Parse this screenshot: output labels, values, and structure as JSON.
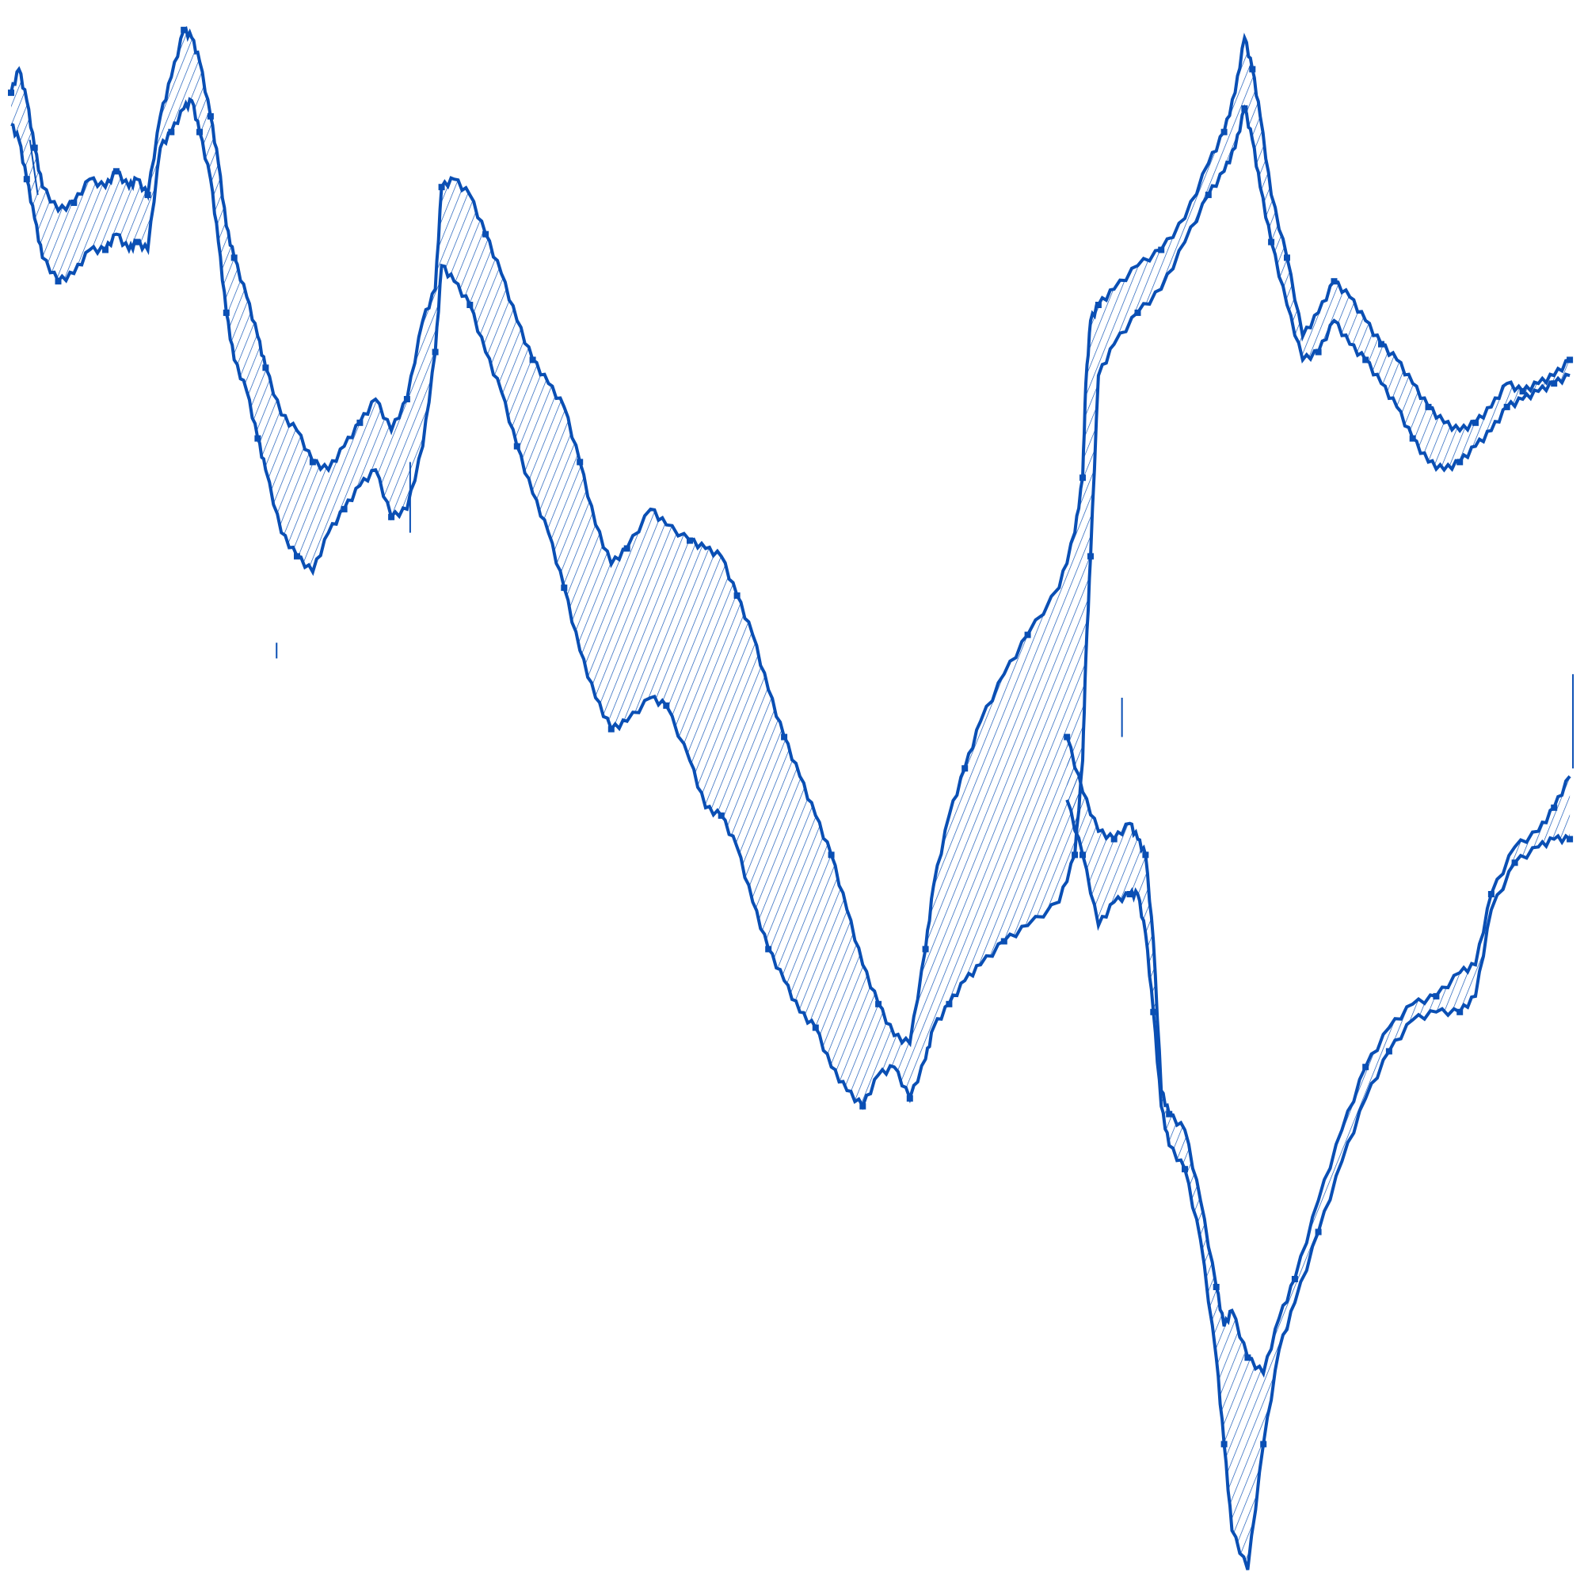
{
  "chart_data": {
    "type": "area",
    "title": "",
    "xlabel": "",
    "ylabel": "",
    "grid": false,
    "legend": "none",
    "xlim": [
      0,
      100
    ],
    "ylim": [
      0,
      100
    ],
    "fill_pattern": "diagonal-hatch",
    "colors": {
      "stroke": "#0a4fb4",
      "hatch": "#0a4fb4",
      "background": "#ffffff"
    },
    "series": [
      {
        "upper": [
          [
            0.3,
            94.5
          ],
          [
            0.8,
            96.0
          ],
          [
            1.3,
            94.0
          ],
          [
            1.8,
            91.0
          ],
          [
            2.3,
            88.5
          ],
          [
            3.3,
            87.0
          ],
          [
            4.3,
            87.5
          ],
          [
            5.3,
            89.0
          ],
          [
            6.3,
            88.5
          ],
          [
            7.0,
            89.5
          ],
          [
            7.8,
            88.5
          ],
          [
            8.3,
            89.0
          ],
          [
            9.0,
            88.0
          ],
          [
            9.8,
            93.0
          ],
          [
            10.5,
            95.5
          ],
          [
            11.3,
            98.5
          ],
          [
            11.8,
            98.0
          ],
          [
            12.3,
            96.5
          ],
          [
            13.0,
            93.0
          ],
          [
            13.5,
            90.0
          ],
          [
            14.0,
            86.0
          ],
          [
            14.5,
            84.0
          ],
          [
            15.3,
            81.5
          ],
          [
            16.0,
            79.0
          ],
          [
            16.5,
            77.0
          ],
          [
            17.5,
            74.0
          ],
          [
            18.5,
            73.0
          ],
          [
            19.5,
            71.0
          ],
          [
            20.5,
            70.5
          ],
          [
            21.5,
            72.0
          ],
          [
            22.5,
            73.5
          ],
          [
            23.5,
            75.0
          ],
          [
            24.5,
            73.0
          ],
          [
            25.5,
            75.0
          ],
          [
            26.5,
            80.0
          ],
          [
            27.3,
            82.0
          ],
          [
            27.7,
            88.5
          ],
          [
            28.5,
            89.0
          ],
          [
            29.5,
            88.0
          ],
          [
            30.5,
            85.5
          ],
          [
            31.5,
            83.0
          ],
          [
            32.5,
            80.0
          ],
          [
            33.5,
            77.5
          ],
          [
            34.5,
            76.0
          ],
          [
            35.5,
            74.5
          ],
          [
            36.5,
            71.0
          ],
          [
            37.5,
            67.0
          ],
          [
            38.5,
            64.5
          ],
          [
            39.5,
            65.5
          ],
          [
            41.0,
            68.0
          ],
          [
            42.0,
            67.0
          ],
          [
            43.5,
            66.0
          ],
          [
            44.5,
            65.5
          ],
          [
            45.5,
            65.0
          ],
          [
            46.5,
            62.5
          ],
          [
            47.5,
            60.0
          ],
          [
            48.5,
            56.5
          ],
          [
            49.5,
            53.5
          ],
          [
            50.5,
            51.0
          ],
          [
            51.5,
            48.5
          ],
          [
            52.5,
            46.0
          ],
          [
            53.5,
            42.5
          ],
          [
            54.5,
            39.0
          ],
          [
            55.5,
            36.5
          ],
          [
            56.5,
            34.5
          ],
          [
            57.5,
            34.0
          ],
          [
            58.5,
            40.0
          ],
          [
            59.0,
            44.0
          ],
          [
            60.0,
            48.5
          ],
          [
            61.0,
            51.5
          ],
          [
            62.0,
            54.5
          ],
          [
            63.5,
            57.5
          ],
          [
            65.0,
            60.0
          ],
          [
            67.0,
            63.0
          ],
          [
            68.0,
            66.5
          ],
          [
            68.5,
            70.0
          ],
          [
            68.7,
            76.0
          ],
          [
            69.0,
            80.0
          ],
          [
            69.5,
            81.0
          ],
          [
            70.5,
            82.0
          ],
          [
            72.0,
            83.5
          ],
          [
            73.5,
            84.5
          ],
          [
            75.0,
            86.5
          ],
          [
            76.5,
            90.0
          ],
          [
            77.5,
            92.0
          ],
          [
            78.2,
            94.5
          ],
          [
            78.8,
            98.0
          ],
          [
            79.3,
            96.0
          ],
          [
            79.8,
            93.0
          ],
          [
            80.5,
            88.0
          ],
          [
            81.5,
            84.0
          ],
          [
            82.5,
            79.0
          ],
          [
            83.5,
            80.5
          ],
          [
            84.5,
            82.5
          ],
          [
            85.5,
            81.5
          ],
          [
            86.5,
            80.0
          ],
          [
            87.5,
            78.5
          ],
          [
            88.5,
            77.5
          ],
          [
            89.5,
            76.0
          ],
          [
            90.5,
            74.5
          ],
          [
            91.5,
            73.5
          ],
          [
            92.5,
            73.0
          ],
          [
            93.5,
            73.5
          ],
          [
            94.5,
            74.5
          ],
          [
            95.5,
            76.0
          ],
          [
            96.5,
            75.5
          ],
          [
            97.5,
            76.0
          ],
          [
            98.5,
            76.5
          ],
          [
            99.5,
            77.5
          ]
        ],
        "lower": [
          [
            0.3,
            92.5
          ],
          [
            0.8,
            91.5
          ],
          [
            1.3,
            89.0
          ],
          [
            1.8,
            86.5
          ],
          [
            2.3,
            84.0
          ],
          [
            3.3,
            82.5
          ],
          [
            4.3,
            83.0
          ],
          [
            5.3,
            84.5
          ],
          [
            6.3,
            84.5
          ],
          [
            7.0,
            85.5
          ],
          [
            7.8,
            84.5
          ],
          [
            8.3,
            85.0
          ],
          [
            9.0,
            84.5
          ],
          [
            9.8,
            91.0
          ],
          [
            10.5,
            92.0
          ],
          [
            11.3,
            93.5
          ],
          [
            11.8,
            94.0
          ],
          [
            12.3,
            92.0
          ],
          [
            13.0,
            89.0
          ],
          [
            13.5,
            85.0
          ],
          [
            14.0,
            80.5
          ],
          [
            14.5,
            77.5
          ],
          [
            15.3,
            75.5
          ],
          [
            16.0,
            72.5
          ],
          [
            16.5,
            70.5
          ],
          [
            17.5,
            66.5
          ],
          [
            18.5,
            65.0
          ],
          [
            19.5,
            64.0
          ],
          [
            20.5,
            66.5
          ],
          [
            21.5,
            68.0
          ],
          [
            22.5,
            69.5
          ],
          [
            23.5,
            70.5
          ],
          [
            24.5,
            67.5
          ],
          [
            25.5,
            68.0
          ],
          [
            26.5,
            72.0
          ],
          [
            27.3,
            78.0
          ],
          [
            27.7,
            83.5
          ],
          [
            28.5,
            82.5
          ],
          [
            29.5,
            81.0
          ],
          [
            30.5,
            78.0
          ],
          [
            31.5,
            75.5
          ],
          [
            32.5,
            72.0
          ],
          [
            33.5,
            69.0
          ],
          [
            34.5,
            66.5
          ],
          [
            35.5,
            63.0
          ],
          [
            36.5,
            59.0
          ],
          [
            37.5,
            56.0
          ],
          [
            38.5,
            54.0
          ],
          [
            39.5,
            54.5
          ],
          [
            41.0,
            56.0
          ],
          [
            42.0,
            55.5
          ],
          [
            43.5,
            52.0
          ],
          [
            44.5,
            49.0
          ],
          [
            45.5,
            48.5
          ],
          [
            46.5,
            46.5
          ],
          [
            47.5,
            43.0
          ],
          [
            48.5,
            40.0
          ],
          [
            49.5,
            38.0
          ],
          [
            50.5,
            36.0
          ],
          [
            51.5,
            35.0
          ],
          [
            52.5,
            32.5
          ],
          [
            53.5,
            31.0
          ],
          [
            54.5,
            30.0
          ],
          [
            55.5,
            32.0
          ],
          [
            56.5,
            32.5
          ],
          [
            57.5,
            30.5
          ],
          [
            58.5,
            33.0
          ],
          [
            59.0,
            35.0
          ],
          [
            60.0,
            36.5
          ],
          [
            61.0,
            38.0
          ],
          [
            62.0,
            39.0
          ],
          [
            63.5,
            40.5
          ],
          [
            65.0,
            41.5
          ],
          [
            67.0,
            43.0
          ],
          [
            68.0,
            46.0
          ],
          [
            68.5,
            52.0
          ],
          [
            68.7,
            58.5
          ],
          [
            69.0,
            65.0
          ],
          [
            69.5,
            76.5
          ],
          [
            70.5,
            78.5
          ],
          [
            72.0,
            80.5
          ],
          [
            73.5,
            82.0
          ],
          [
            75.0,
            85.0
          ],
          [
            76.5,
            88.0
          ],
          [
            77.5,
            89.5
          ],
          [
            78.2,
            91.0
          ],
          [
            78.8,
            93.5
          ],
          [
            79.3,
            91.5
          ],
          [
            79.8,
            88.5
          ],
          [
            80.5,
            85.0
          ],
          [
            81.5,
            81.0
          ],
          [
            82.5,
            77.5
          ],
          [
            83.5,
            78.0
          ],
          [
            84.5,
            80.0
          ],
          [
            85.5,
            78.5
          ],
          [
            86.5,
            77.5
          ],
          [
            87.5,
            76.0
          ],
          [
            88.5,
            74.5
          ],
          [
            89.5,
            72.5
          ],
          [
            90.5,
            71.0
          ],
          [
            91.5,
            70.5
          ],
          [
            92.5,
            71.0
          ],
          [
            93.5,
            72.0
          ],
          [
            94.5,
            73.0
          ],
          [
            95.5,
            74.5
          ],
          [
            96.5,
            75.0
          ],
          [
            97.5,
            75.5
          ],
          [
            98.5,
            76.0
          ],
          [
            99.5,
            76.5
          ]
        ]
      },
      {
        "upper": [
          [
            67.5,
            53.5
          ],
          [
            68.5,
            50.0
          ],
          [
            69.5,
            47.5
          ],
          [
            70.5,
            47.0
          ],
          [
            71.5,
            48.0
          ],
          [
            72.0,
            47.0
          ],
          [
            72.5,
            46.0
          ],
          [
            73.0,
            40.5
          ],
          [
            73.5,
            31.0
          ],
          [
            74.0,
            29.5
          ],
          [
            75.0,
            28.5
          ],
          [
            76.0,
            24.0
          ],
          [
            77.0,
            18.5
          ],
          [
            77.5,
            16.0
          ],
          [
            78.0,
            17.0
          ],
          [
            79.0,
            14.0
          ],
          [
            80.0,
            13.0
          ],
          [
            81.0,
            16.5
          ],
          [
            82.0,
            19.0
          ],
          [
            83.5,
            24.0
          ],
          [
            85.0,
            28.5
          ],
          [
            86.5,
            32.5
          ],
          [
            88.0,
            35.0
          ],
          [
            89.5,
            36.5
          ],
          [
            91.0,
            37.0
          ],
          [
            92.5,
            38.5
          ],
          [
            93.5,
            39.0
          ],
          [
            94.5,
            43.5
          ],
          [
            96.0,
            46.5
          ],
          [
            97.5,
            47.5
          ],
          [
            98.5,
            49.0
          ],
          [
            99.5,
            51.0
          ]
        ],
        "lower": [
          [
            67.5,
            49.5
          ],
          [
            68.5,
            46.0
          ],
          [
            69.5,
            41.5
          ],
          [
            70.5,
            43.0
          ],
          [
            71.5,
            43.5
          ],
          [
            72.0,
            43.5
          ],
          [
            72.5,
            41.0
          ],
          [
            73.0,
            36.0
          ],
          [
            73.5,
            30.0
          ],
          [
            74.0,
            27.5
          ],
          [
            75.0,
            26.0
          ],
          [
            76.0,
            21.5
          ],
          [
            77.0,
            14.0
          ],
          [
            77.5,
            8.5
          ],
          [
            78.0,
            3.0
          ],
          [
            79.0,
            0.5
          ],
          [
            80.0,
            8.5
          ],
          [
            81.0,
            14.5
          ],
          [
            82.0,
            17.5
          ],
          [
            83.5,
            22.0
          ],
          [
            85.0,
            26.5
          ],
          [
            86.5,
            30.5
          ],
          [
            88.0,
            33.5
          ],
          [
            89.5,
            35.5
          ],
          [
            91.0,
            36.0
          ],
          [
            92.5,
            36.0
          ],
          [
            93.5,
            37.0
          ],
          [
            94.5,
            42.5
          ],
          [
            96.0,
            45.5
          ],
          [
            97.5,
            46.5
          ],
          [
            98.5,
            47.0
          ],
          [
            99.5,
            47.0
          ]
        ]
      }
    ],
    "segments": [
      [
        [
          1.5,
          91.5
        ],
        [
          2.0,
          88.0
        ]
      ],
      [
        [
          17.2,
          59.5
        ],
        [
          17.2,
          58.5
        ]
      ],
      [
        [
          25.7,
          71.0
        ],
        [
          25.7,
          66.5
        ]
      ],
      [
        [
          71.0,
          56.0
        ],
        [
          71.0,
          53.5
        ]
      ],
      [
        [
          99.7,
          57.5
        ],
        [
          99.7,
          51.5
        ]
      ]
    ]
  }
}
